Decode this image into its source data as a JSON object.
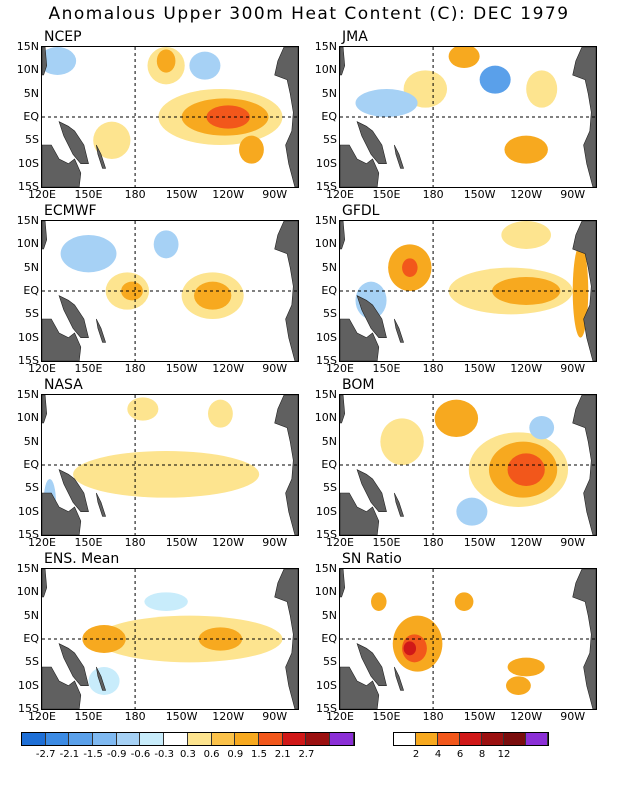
{
  "title": "Anomalous Upper 300m Heat Content (C): DEC 1979",
  "y_ticks": [
    "15N",
    "10N",
    "5N",
    "EQ",
    "5S",
    "10S",
    "15S"
  ],
  "x_ticks": [
    "120E",
    "150E",
    "180",
    "150W",
    "120W",
    "90W"
  ],
  "colors": {
    "land": "#606060",
    "blue_dark": "#1e6fd6",
    "blue_mid": "#5aa0ea",
    "blue_light": "#a6d1f5",
    "blue_pale": "#c8ecfb",
    "yellow": "#fde48f",
    "orange": "#f7a91f",
    "red_orange": "#f2571b",
    "red": "#d01818"
  },
  "panels": [
    {
      "name": "NCEP",
      "features": [
        {
          "lon": 235,
          "lat": 0,
          "rx": 40,
          "ry": 6,
          "c": "yellow"
        },
        {
          "lon": 238,
          "lat": 0,
          "rx": 28,
          "ry": 4,
          "c": "orange"
        },
        {
          "lon": 240,
          "lat": 0,
          "rx": 14,
          "ry": 2.5,
          "c": "red_orange"
        },
        {
          "lon": 200,
          "lat": 11,
          "rx": 12,
          "ry": 4,
          "c": "yellow"
        },
        {
          "lon": 200,
          "lat": 12,
          "rx": 6,
          "ry": 2.5,
          "c": "orange"
        },
        {
          "lon": 255,
          "lat": -7,
          "rx": 8,
          "ry": 3,
          "c": "orange"
        },
        {
          "lon": 165,
          "lat": -5,
          "rx": 12,
          "ry": 4,
          "c": "yellow"
        },
        {
          "lon": 130,
          "lat": 12,
          "rx": 12,
          "ry": 3,
          "c": "blue_light"
        },
        {
          "lon": 225,
          "lat": 11,
          "rx": 10,
          "ry": 3,
          "c": "blue_light"
        }
      ]
    },
    {
      "name": "JMA",
      "features": [
        {
          "lon": 200,
          "lat": 13,
          "rx": 10,
          "ry": 2.5,
          "c": "orange"
        },
        {
          "lon": 250,
          "lat": 6,
          "rx": 10,
          "ry": 4,
          "c": "yellow"
        },
        {
          "lon": 175,
          "lat": 6,
          "rx": 14,
          "ry": 4,
          "c": "yellow"
        },
        {
          "lon": 240,
          "lat": -7,
          "rx": 14,
          "ry": 3,
          "c": "orange"
        },
        {
          "lon": 150,
          "lat": 3,
          "rx": 20,
          "ry": 3,
          "c": "blue_light"
        },
        {
          "lon": 220,
          "lat": 8,
          "rx": 10,
          "ry": 3,
          "c": "blue_mid"
        }
      ]
    },
    {
      "name": "ECMWF",
      "features": [
        {
          "lon": 230,
          "lat": -1,
          "rx": 20,
          "ry": 5,
          "c": "yellow"
        },
        {
          "lon": 230,
          "lat": -1,
          "rx": 12,
          "ry": 3,
          "c": "orange"
        },
        {
          "lon": 175,
          "lat": 0,
          "rx": 14,
          "ry": 4,
          "c": "yellow"
        },
        {
          "lon": 178,
          "lat": 0,
          "rx": 7,
          "ry": 2,
          "c": "orange"
        },
        {
          "lon": 150,
          "lat": 8,
          "rx": 18,
          "ry": 4,
          "c": "blue_light"
        },
        {
          "lon": 200,
          "lat": 10,
          "rx": 8,
          "ry": 3,
          "c": "blue_light"
        }
      ]
    },
    {
      "name": "GFDL",
      "features": [
        {
          "lon": 230,
          "lat": 0,
          "rx": 40,
          "ry": 5,
          "c": "yellow"
        },
        {
          "lon": 240,
          "lat": 0,
          "rx": 22,
          "ry": 3,
          "c": "orange"
        },
        {
          "lon": 165,
          "lat": 5,
          "rx": 14,
          "ry": 5,
          "c": "orange"
        },
        {
          "lon": 165,
          "lat": 5,
          "rx": 5,
          "ry": 2,
          "c": "red_orange"
        },
        {
          "lon": 240,
          "lat": 12,
          "rx": 16,
          "ry": 3,
          "c": "yellow"
        },
        {
          "lon": 275,
          "lat": 0,
          "rx": 5,
          "ry": 10,
          "c": "orange"
        },
        {
          "lon": 140,
          "lat": -2,
          "rx": 10,
          "ry": 4,
          "c": "blue_light"
        }
      ]
    },
    {
      "name": "NASA",
      "features": [
        {
          "lon": 200,
          "lat": -2,
          "rx": 60,
          "ry": 5,
          "c": "yellow"
        },
        {
          "lon": 185,
          "lat": 12,
          "rx": 10,
          "ry": 2.5,
          "c": "yellow"
        },
        {
          "lon": 235,
          "lat": 11,
          "rx": 8,
          "ry": 3,
          "c": "yellow"
        },
        {
          "lon": 125,
          "lat": -8,
          "rx": 4,
          "ry": 5,
          "c": "blue_light"
        }
      ]
    },
    {
      "name": "BOM",
      "features": [
        {
          "lon": 235,
          "lat": -1,
          "rx": 32,
          "ry": 8,
          "c": "yellow"
        },
        {
          "lon": 238,
          "lat": -1,
          "rx": 22,
          "ry": 6,
          "c": "orange"
        },
        {
          "lon": 240,
          "lat": -1,
          "rx": 12,
          "ry": 3.5,
          "c": "red_orange"
        },
        {
          "lon": 195,
          "lat": 10,
          "rx": 14,
          "ry": 4,
          "c": "orange"
        },
        {
          "lon": 160,
          "lat": 5,
          "rx": 14,
          "ry": 5,
          "c": "yellow"
        },
        {
          "lon": 205,
          "lat": -10,
          "rx": 10,
          "ry": 3,
          "c": "blue_light"
        },
        {
          "lon": 250,
          "lat": 8,
          "rx": 8,
          "ry": 2.5,
          "c": "blue_light"
        }
      ]
    },
    {
      "name": "ENS. Mean",
      "features": [
        {
          "lon": 215,
          "lat": 0,
          "rx": 60,
          "ry": 5,
          "c": "yellow"
        },
        {
          "lon": 235,
          "lat": 0,
          "rx": 14,
          "ry": 2.5,
          "c": "orange"
        },
        {
          "lon": 160,
          "lat": 0,
          "rx": 14,
          "ry": 3,
          "c": "orange"
        },
        {
          "lon": 200,
          "lat": 8,
          "rx": 14,
          "ry": 2,
          "c": "blue_pale"
        },
        {
          "lon": 160,
          "lat": -9,
          "rx": 10,
          "ry": 3,
          "c": "blue_pale"
        }
      ]
    },
    {
      "name": "SN Ratio",
      "features": [
        {
          "lon": 170,
          "lat": -1,
          "rx": 16,
          "ry": 6,
          "c": "orange"
        },
        {
          "lon": 168,
          "lat": -2,
          "rx": 8,
          "ry": 3,
          "c": "red_orange"
        },
        {
          "lon": 165,
          "lat": -2,
          "rx": 4,
          "ry": 1.5,
          "c": "red"
        },
        {
          "lon": 200,
          "lat": 8,
          "rx": 6,
          "ry": 2,
          "c": "orange"
        },
        {
          "lon": 240,
          "lat": -6,
          "rx": 12,
          "ry": 2,
          "c": "orange"
        },
        {
          "lon": 235,
          "lat": -10,
          "rx": 8,
          "ry": 2,
          "c": "orange"
        },
        {
          "lon": 145,
          "lat": 8,
          "rx": 5,
          "ry": 2,
          "c": "orange"
        }
      ]
    }
  ],
  "colorbar_left": {
    "colors": [
      "#1e6fd6",
      "#3c8be4",
      "#5aa0ea",
      "#7fb9f1",
      "#a6d1f5",
      "#c8ecfb",
      "#ffffff",
      "#fde48f",
      "#fbc24a",
      "#f7a91f",
      "#f2571b",
      "#d01818",
      "#9b1010",
      "#8b2fd6"
    ],
    "labels": [
      "-2.7",
      "-2.1",
      "-1.5",
      "-0.9",
      "-0.6",
      "-0.3",
      "0.3",
      "0.6",
      "0.9",
      "1.5",
      "2.1",
      "2.7"
    ]
  },
  "colorbar_right": {
    "colors": [
      "#ffffff",
      "#f7a91f",
      "#f2571b",
      "#d01818",
      "#9b1010",
      "#7a0d0d",
      "#8b2fd6"
    ],
    "labels": [
      "2",
      "4",
      "6",
      "8",
      "12"
    ]
  }
}
